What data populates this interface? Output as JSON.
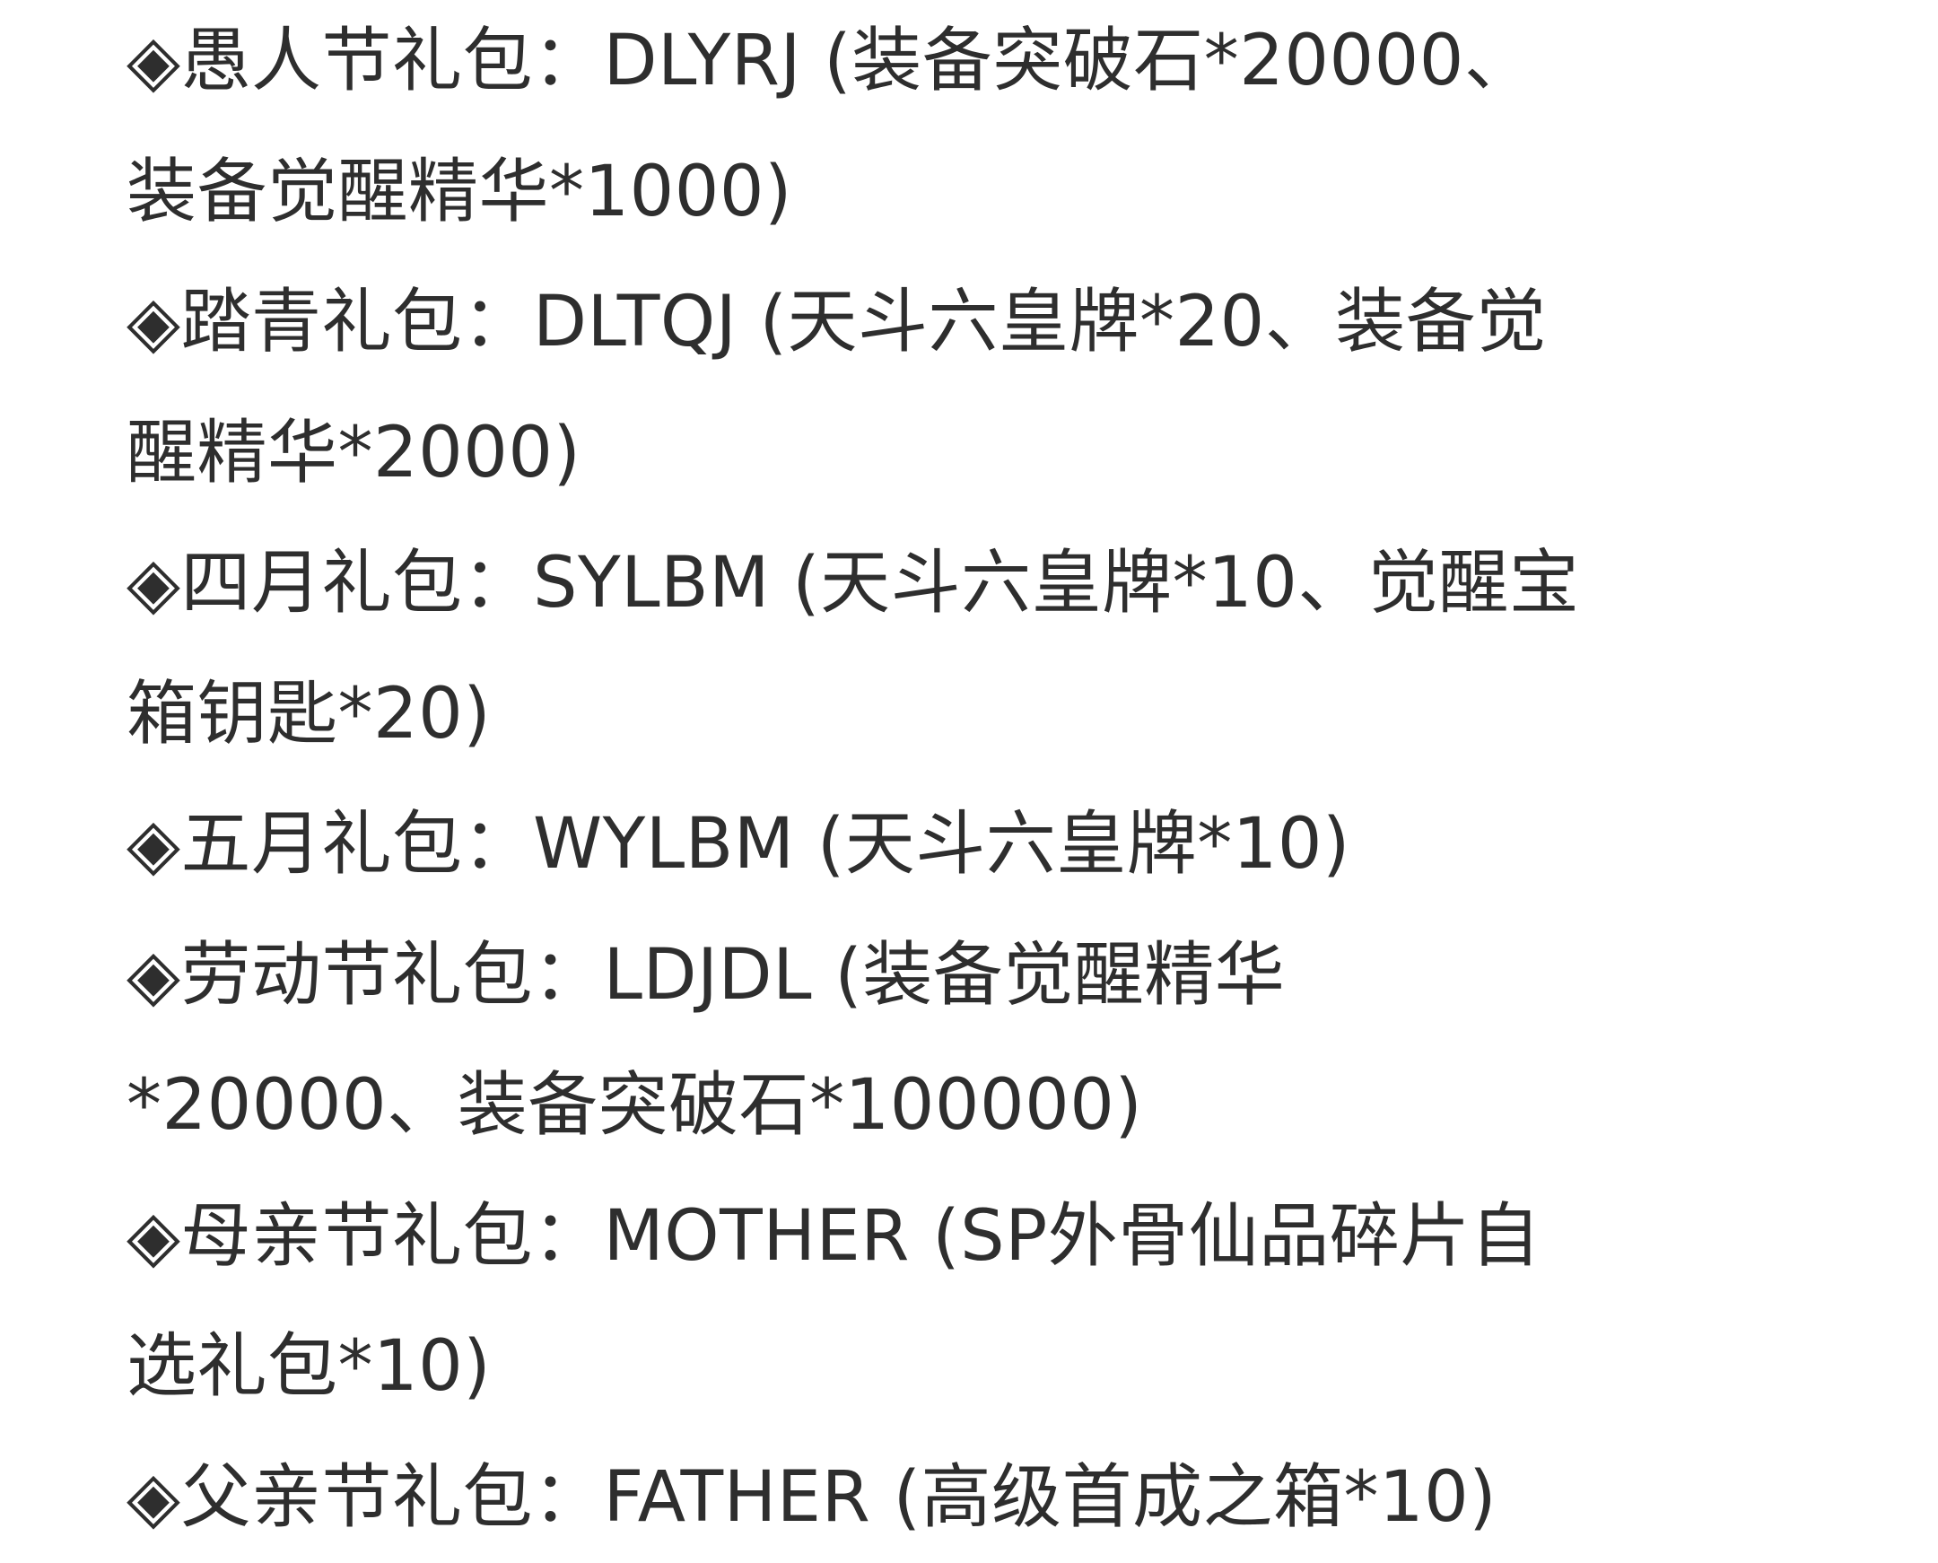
{
  "lines": [
    "◈愚人节礼包：DLYRJ (装备突破石*20000、",
    "装备觉醒精华*1000)",
    "◈踏青礼包：DLTQJ (天斗六皇牌*20、装备觉",
    "醒精华*2000)",
    "◈四月礼包：SYLBM (天斗六皇牌*10、觉醒宝",
    "箱钥匙*20)",
    "◈五月礼包：WYLBM (天斗六皇牌*10)",
    "◈劳动节礼包：LDJDL (装备觉醒精华",
    "*20000、装备突破石*100000)",
    "◈母亲节礼包：MOTHER (SP外骨仙品碎片自",
    "选礼包*10)",
    "◈父亲节礼包：FATHER (高级首成之箱*10)"
  ]
}
